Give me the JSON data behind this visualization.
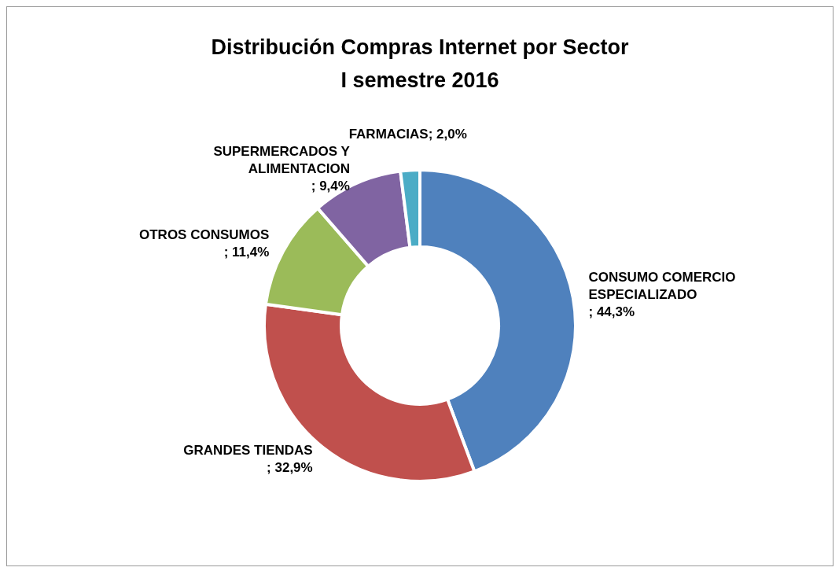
{
  "chart_data": {
    "type": "donut",
    "title": "Distribución Compras Internet por Sector\nI semestre 2016",
    "categories": [
      "CONSUMO COMERCIO ESPECIALIZADO",
      "GRANDES TIENDAS",
      "OTROS CONSUMOS",
      "SUPERMERCADOS Y ALIMENTACION",
      "FARMACIAS"
    ],
    "values": [
      44.3,
      32.9,
      11.4,
      9.4,
      2.0
    ],
    "value_labels": [
      "; 44,3%",
      "; 32,9%",
      "; 11,4%",
      "; 9,4%",
      "; 2,0%"
    ],
    "colors": [
      "#4f81bd",
      "#c0504d",
      "#9bbb59",
      "#8064a2",
      "#4bacc6"
    ],
    "legend": false
  }
}
